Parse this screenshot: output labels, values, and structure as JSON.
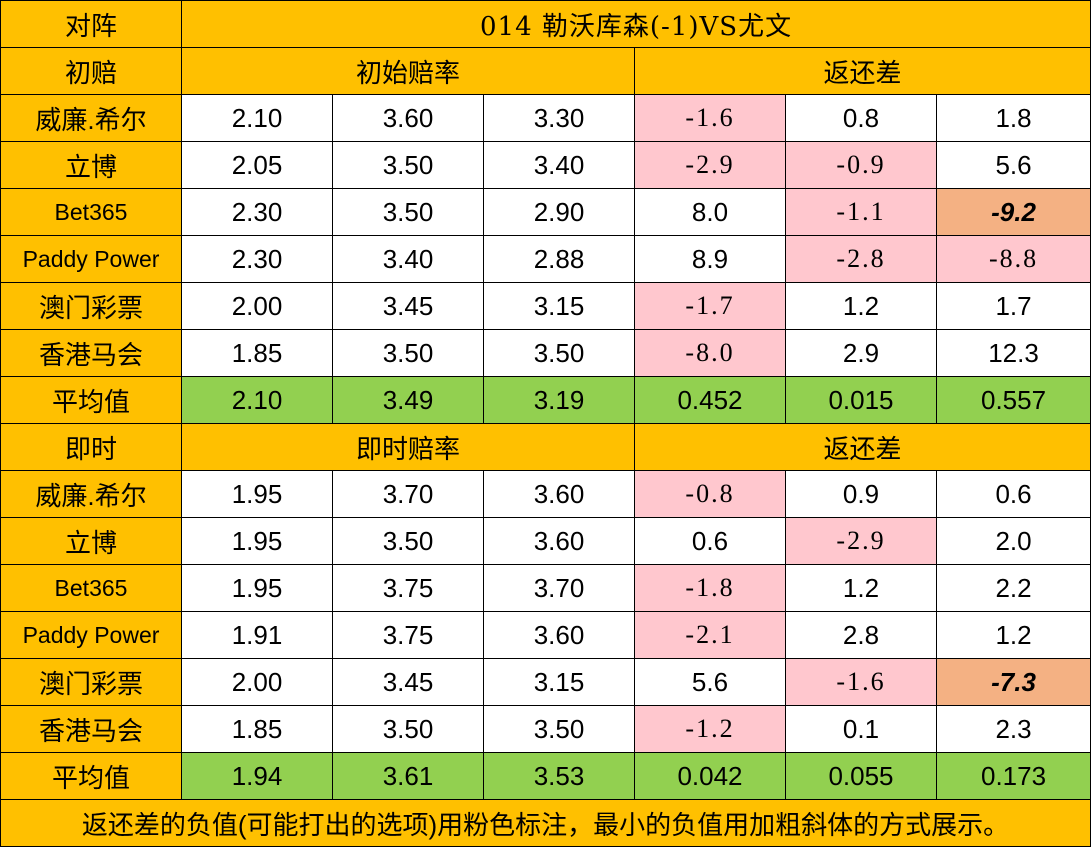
{
  "title_label": "对阵",
  "match_title": "014  勒沃库森(-1)VS尤文",
  "colors": {
    "header": "#ffc000",
    "average": "#92d050",
    "negative": "#ffc7ce",
    "min_negative": "#f4b183",
    "negative_text": "#c00000"
  },
  "sections": [
    {
      "label": "初赔",
      "odds_header": "初始赔率",
      "return_header": "返还差",
      "rows": [
        {
          "book": "威廉.希尔",
          "odds": [
            "2.10",
            "3.60",
            "3.30"
          ],
          "diff": [
            "-1.6",
            "0.8",
            "1.8"
          ]
        },
        {
          "book": "立博",
          "odds": [
            "2.05",
            "3.50",
            "3.40"
          ],
          "diff": [
            "-2.9",
            "-0.9",
            "5.6"
          ]
        },
        {
          "book": "Bet365",
          "odds": [
            "2.30",
            "3.50",
            "2.90"
          ],
          "diff": [
            "8.0",
            "-1.1",
            "-9.2"
          ]
        },
        {
          "book": "Paddy Power",
          "odds": [
            "2.30",
            "3.40",
            "2.88"
          ],
          "diff": [
            "8.9",
            "-2.8",
            "-8.8"
          ]
        },
        {
          "book": "澳门彩票",
          "odds": [
            "2.00",
            "3.45",
            "3.15"
          ],
          "diff": [
            "-1.7",
            "1.2",
            "1.7"
          ]
        },
        {
          "book": "香港马会",
          "odds": [
            "1.85",
            "3.50",
            "3.50"
          ],
          "diff": [
            "-8.0",
            "2.9",
            "12.3"
          ]
        }
      ],
      "average": {
        "label": "平均值",
        "odds": [
          "2.10",
          "3.49",
          "3.19"
        ],
        "diff": [
          "0.452",
          "0.015",
          "0.557"
        ]
      }
    },
    {
      "label": "即时",
      "odds_header": "即时赔率",
      "return_header": "返还差",
      "rows": [
        {
          "book": "威廉.希尔",
          "odds": [
            "1.95",
            "3.70",
            "3.60"
          ],
          "diff": [
            "-0.8",
            "0.9",
            "0.6"
          ]
        },
        {
          "book": "立博",
          "odds": [
            "1.95",
            "3.50",
            "3.60"
          ],
          "diff": [
            "0.6",
            "-2.9",
            "2.0"
          ]
        },
        {
          "book": "Bet365",
          "odds": [
            "1.95",
            "3.75",
            "3.70"
          ],
          "diff": [
            "-1.8",
            "1.2",
            "2.2"
          ]
        },
        {
          "book": "Paddy Power",
          "odds": [
            "1.91",
            "3.75",
            "3.60"
          ],
          "diff": [
            "-2.1",
            "2.8",
            "1.2"
          ]
        },
        {
          "book": "澳门彩票",
          "odds": [
            "2.00",
            "3.45",
            "3.15"
          ],
          "diff": [
            "5.6",
            "-1.6",
            "-7.3"
          ]
        },
        {
          "book": "香港马会",
          "odds": [
            "1.85",
            "3.50",
            "3.50"
          ],
          "diff": [
            "-1.2",
            "0.1",
            "2.3"
          ]
        }
      ],
      "average": {
        "label": "平均值",
        "odds": [
          "1.94",
          "3.61",
          "3.53"
        ],
        "diff": [
          "0.042",
          "0.055",
          "0.173"
        ]
      }
    }
  ],
  "footer_note": "返还差的负值(可能打出的选项)用粉色标注，最小的负值用加粗斜体的方式展示。"
}
